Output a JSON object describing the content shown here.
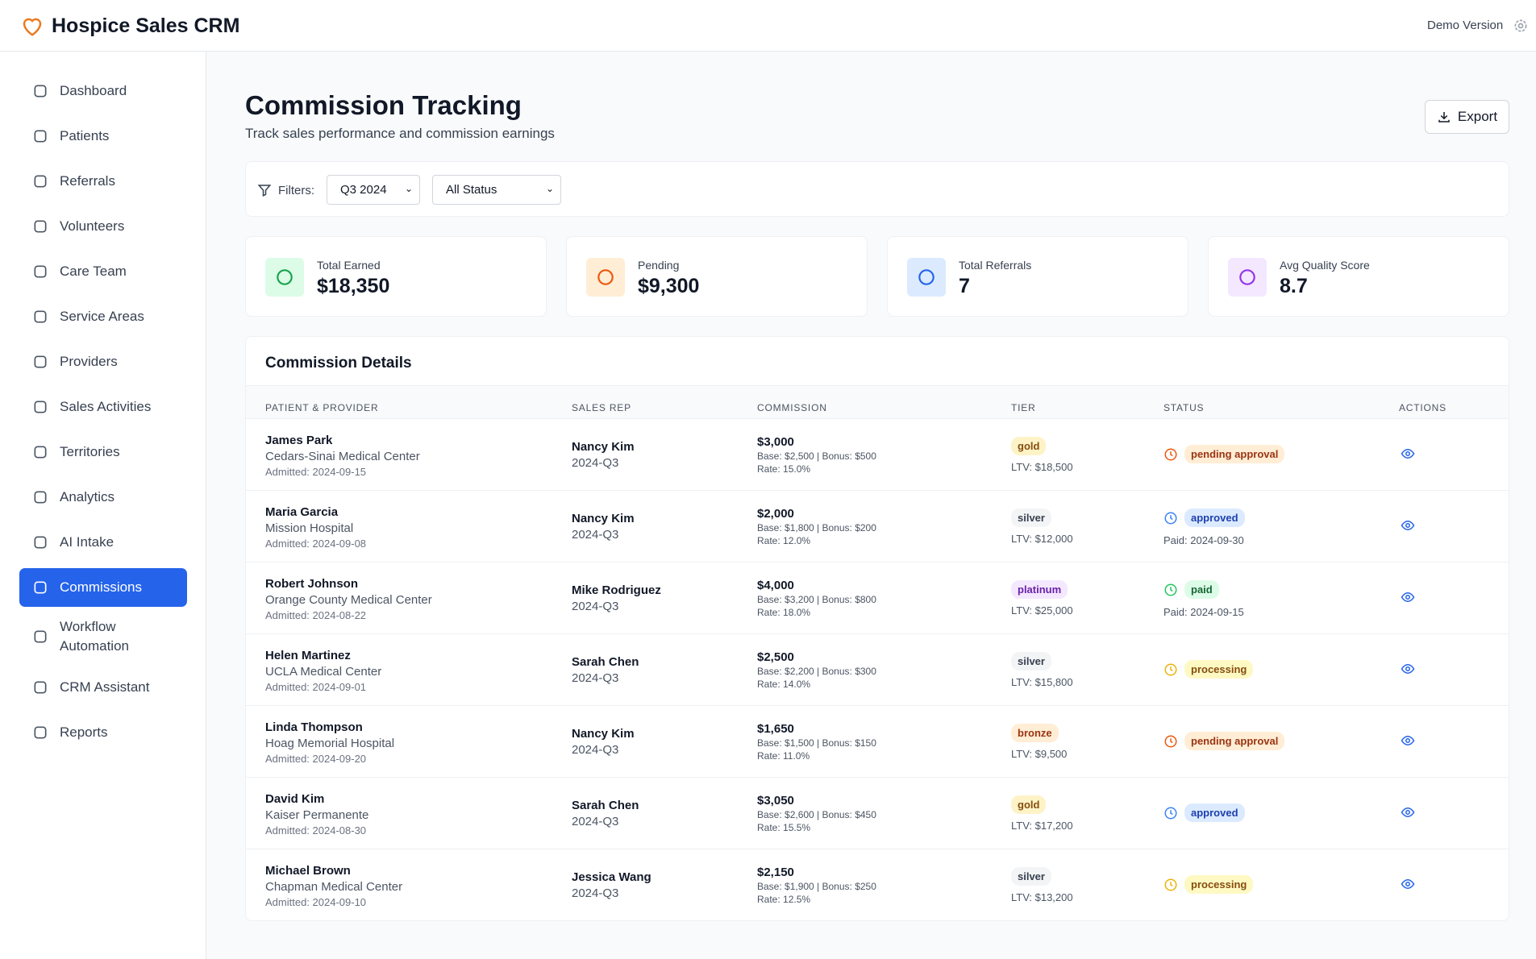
{
  "header": {
    "title": "Hospice Sales CRM",
    "demo": "Demo Version"
  },
  "nav": [
    {
      "label": "Dashboard"
    },
    {
      "label": "Patients"
    },
    {
      "label": "Referrals"
    },
    {
      "label": "Volunteers"
    },
    {
      "label": "Care Team"
    },
    {
      "label": "Service Areas"
    },
    {
      "label": "Providers"
    },
    {
      "label": "Sales Activities"
    },
    {
      "label": "Territories"
    },
    {
      "label": "Analytics"
    },
    {
      "label": "AI Intake"
    },
    {
      "label": "Commissions",
      "active": true
    },
    {
      "label": "Workflow Automation"
    },
    {
      "label": "CRM Assistant"
    },
    {
      "label": "Reports"
    }
  ],
  "page": {
    "title": "Commission Tracking",
    "subtitle": "Track sales performance and commission earnings",
    "export": "Export"
  },
  "filters": {
    "label": "Filters:",
    "period": "Q3 2024",
    "status": "All Status"
  },
  "stats": [
    {
      "label": "Total Earned",
      "value": "$18,350",
      "bg": "#dcfce7",
      "fg": "#16a34a"
    },
    {
      "label": "Pending",
      "value": "$9,300",
      "bg": "#ffedd5",
      "fg": "#ea580c"
    },
    {
      "label": "Total Referrals",
      "value": "7",
      "bg": "#dbeafe",
      "fg": "#2563eb"
    },
    {
      "label": "Avg Quality Score",
      "value": "8.7",
      "bg": "#f3e8ff",
      "fg": "#9333ea"
    }
  ],
  "table": {
    "title": "Commission Details",
    "columns": [
      "PATIENT & PROVIDER",
      "SALES REP",
      "COMMISSION",
      "TIER",
      "STATUS",
      "ACTIONS"
    ],
    "rows": [
      {
        "patient": "James Park",
        "provider": "Cedars-Sinai Medical Center",
        "admitted": "Admitted: 2024-09-15",
        "rep": "Nancy Kim",
        "period": "2024-Q3",
        "commission": "$3,000",
        "breakdown": "Base: $2,500 | Bonus: $500",
        "rate": "Rate: 15.0%",
        "tier": "gold",
        "tier_colors": [
          "#fef3c7",
          "#854d0e"
        ],
        "ltv": "LTV: $18,500",
        "status": "pending approval",
        "status_colors": [
          "#ffedd5",
          "#9a3412"
        ]
      },
      {
        "patient": "Maria Garcia",
        "provider": "Mission Hospital",
        "admitted": "Admitted: 2024-09-08",
        "rep": "Nancy Kim",
        "period": "2024-Q3",
        "commission": "$2,000",
        "breakdown": "Base: $1,800 | Bonus: $200",
        "rate": "Rate: 12.0%",
        "tier": "silver",
        "tier_colors": [
          "#f3f4f6",
          "#374151"
        ],
        "ltv": "LTV: $12,000",
        "status": "approved",
        "status_colors": [
          "#dbeafe",
          "#1e40af"
        ],
        "paid": "Paid: 2024-09-30"
      },
      {
        "patient": "Robert Johnson",
        "provider": "Orange County Medical Center",
        "admitted": "Admitted: 2024-08-22",
        "rep": "Mike Rodriguez",
        "period": "2024-Q3",
        "commission": "$4,000",
        "breakdown": "Base: $3,200 | Bonus: $800",
        "rate": "Rate: 18.0%",
        "tier": "platinum",
        "tier_colors": [
          "#f3e8ff",
          "#6b21a8"
        ],
        "ltv": "LTV: $25,000",
        "status": "paid",
        "status_colors": [
          "#dcfce7",
          "#166534"
        ],
        "paid": "Paid: 2024-09-15"
      },
      {
        "patient": "Helen Martinez",
        "provider": "UCLA Medical Center",
        "admitted": "Admitted: 2024-09-01",
        "rep": "Sarah Chen",
        "period": "2024-Q3",
        "commission": "$2,500",
        "breakdown": "Base: $2,200 | Bonus: $300",
        "rate": "Rate: 14.0%",
        "tier": "silver",
        "tier_colors": [
          "#f3f4f6",
          "#374151"
        ],
        "ltv": "LTV: $15,800",
        "status": "processing",
        "status_colors": [
          "#fef9c3",
          "#854d0e"
        ]
      },
      {
        "patient": "Linda Thompson",
        "provider": "Hoag Memorial Hospital",
        "admitted": "Admitted: 2024-09-20",
        "rep": "Nancy Kim",
        "period": "2024-Q3",
        "commission": "$1,650",
        "breakdown": "Base: $1,500 | Bonus: $150",
        "rate": "Rate: 11.0%",
        "tier": "bronze",
        "tier_colors": [
          "#ffedd5",
          "#9a3412"
        ],
        "ltv": "LTV: $9,500",
        "status": "pending approval",
        "status_colors": [
          "#ffedd5",
          "#9a3412"
        ]
      },
      {
        "patient": "David Kim",
        "provider": "Kaiser Permanente",
        "admitted": "Admitted: 2024-08-30",
        "rep": "Sarah Chen",
        "period": "2024-Q3",
        "commission": "$3,050",
        "breakdown": "Base: $2,600 | Bonus: $450",
        "rate": "Rate: 15.5%",
        "tier": "gold",
        "tier_colors": [
          "#fef3c7",
          "#854d0e"
        ],
        "ltv": "LTV: $17,200",
        "status": "approved",
        "status_colors": [
          "#dbeafe",
          "#1e40af"
        ]
      },
      {
        "patient": "Michael Brown",
        "provider": "Chapman Medical Center",
        "admitted": "Admitted: 2024-09-10",
        "rep": "Jessica Wang",
        "period": "2024-Q3",
        "commission": "$2,150",
        "breakdown": "Base: $1,900 | Bonus: $250",
        "rate": "Rate: 12.5%",
        "tier": "silver",
        "tier_colors": [
          "#f3f4f6",
          "#374151"
        ],
        "ltv": "LTV: $13,200",
        "status": "processing",
        "status_colors": [
          "#fef9c3",
          "#854d0e"
        ]
      }
    ]
  }
}
